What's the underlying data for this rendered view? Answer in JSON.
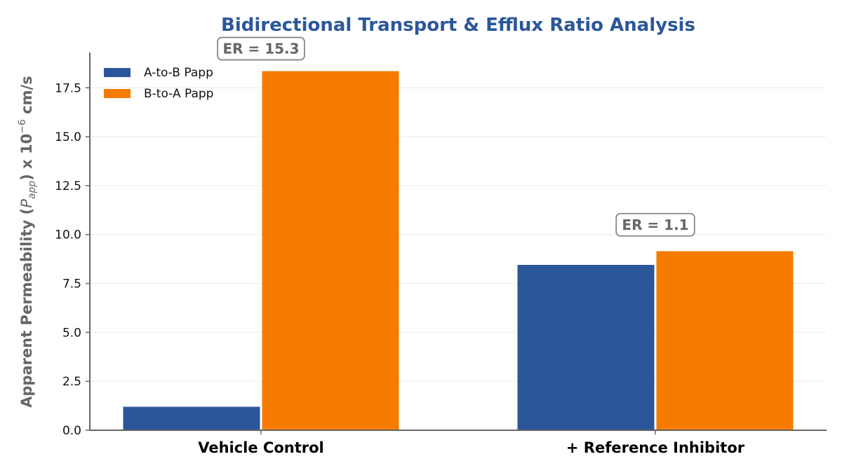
{
  "chart_data": {
    "type": "bar",
    "title": "Bidirectional Transport & Efflux Ratio Analysis",
    "ylabel": "Apparent Permeability (P_app) x 10^-6 cm/s",
    "ylabel_parts": {
      "prefix": "Apparent Permeability (",
      "symbol": "P",
      "subscript": "app",
      "middle": ") x 10",
      "exponent": "−6",
      "suffix": " cm/s"
    },
    "xlabel": "",
    "categories": [
      "Vehicle Control",
      "+ Reference Inhibitor"
    ],
    "series": [
      {
        "name": "A-to-B Papp",
        "color": "#2b579a",
        "values": [
          1.2,
          8.45
        ]
      },
      {
        "name": "B-to-A Papp",
        "color": "#f57c00",
        "values": [
          18.35,
          9.15
        ]
      }
    ],
    "ylim": [
      0,
      19.3
    ],
    "yticks": [
      0.0,
      2.5,
      5.0,
      7.5,
      10.0,
      12.5,
      15.0,
      17.5
    ],
    "ytick_labels": [
      "0.0",
      "2.5",
      "5.0",
      "7.5",
      "10.0",
      "12.5",
      "15.0",
      "17.5"
    ],
    "grid": "horizontal",
    "legend_position": "top-left",
    "annotations": [
      {
        "text": "ER = 15.3",
        "category": "Vehicle Control",
        "y": 19.5
      },
      {
        "text": "ER = 1.1",
        "category": "+ Reference Inhibitor",
        "y": 10.5
      }
    ],
    "colors": {
      "title": "#2b579a",
      "axis": "#666666",
      "grid": "#ebebeb",
      "annotation_border": "#888888",
      "annotation_text": "#666666"
    }
  }
}
